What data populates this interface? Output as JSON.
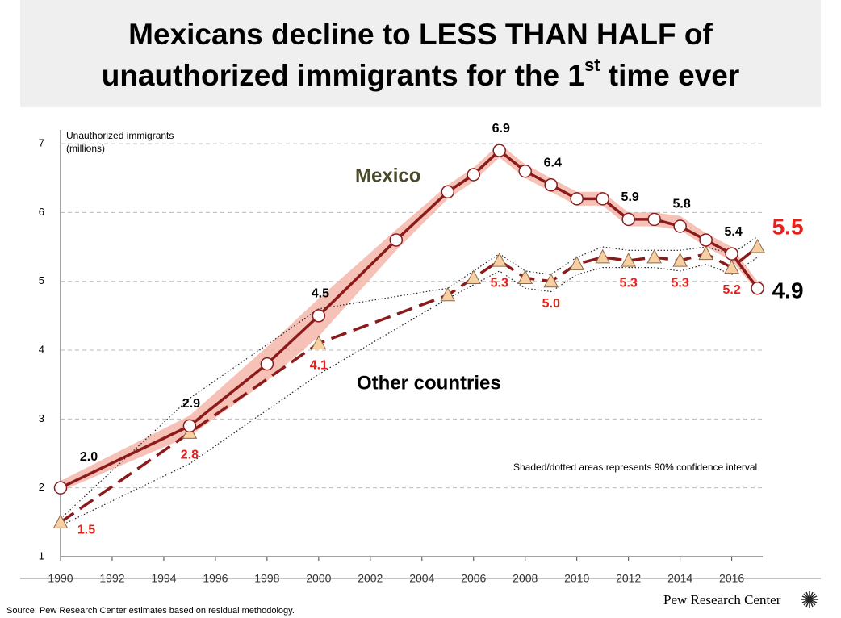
{
  "chart_data": {
    "type": "line",
    "title": {
      "line1": "Mexicans decline to LESS THAN HALF of",
      "line2": "unauthorized immigrants for the 1",
      "superscript": "st",
      "line2_end": " time ever"
    },
    "y_label": [
      "Unauthorized immigrants",
      "(millions)"
    ],
    "annotations": {
      "mexico": "Mexico",
      "other": "Other countries",
      "note": "Shaded/dotted areas represents 90% confidence interval"
    },
    "source": "Source: Pew Research Center estimates based on residual methodology.",
    "brand": "Pew Research Center",
    "xlim": [
      1990,
      2017.2
    ],
    "xticks": [
      1990,
      1992,
      1994,
      1996,
      1998,
      2000,
      2002,
      2004,
      2006,
      2008,
      2010,
      2012,
      2014,
      2016
    ],
    "ylim": [
      1,
      7.2
    ],
    "yticks": [
      1,
      2,
      3,
      4,
      5,
      6,
      7
    ],
    "grid": true,
    "series": [
      {
        "name": "Mexico",
        "color": "#8b1a1a",
        "band_color": "#f4b3a5",
        "x": [
          1990,
          1995,
          1998,
          2000,
          2003,
          2005,
          2006,
          2007,
          2008,
          2009,
          2010,
          2011,
          2012,
          2013,
          2014,
          2015,
          2016,
          2017
        ],
        "values": [
          2.0,
          2.9,
          3.8,
          4.5,
          5.6,
          6.3,
          6.55,
          6.9,
          6.6,
          6.4,
          6.2,
          6.2,
          5.9,
          5.9,
          5.8,
          5.6,
          5.4,
          4.9
        ],
        "value_labels": [
          "2.0",
          "2.9",
          null,
          "4.5",
          null,
          null,
          null,
          "6.9",
          null,
          "6.4",
          null,
          null,
          "5.9",
          null,
          "5.8",
          null,
          "5.4",
          "4.9"
        ],
        "lower": [
          1.95,
          2.75,
          3.55,
          4.2,
          5.45,
          6.2,
          6.45,
          6.8,
          6.5,
          6.3,
          6.1,
          6.1,
          5.8,
          5.8,
          5.75,
          5.5,
          5.3,
          4.85
        ],
        "upper": [
          2.1,
          3.05,
          4.05,
          4.75,
          5.75,
          6.4,
          6.65,
          7.0,
          6.7,
          6.5,
          6.3,
          6.3,
          6.0,
          6.0,
          5.95,
          5.7,
          5.5,
          5.0
        ]
      },
      {
        "name": "Other countries",
        "color": "#8b1a1a",
        "x": [
          1990,
          1995,
          2000,
          2005,
          2006,
          2007,
          2008,
          2009,
          2010,
          2011,
          2012,
          2013,
          2014,
          2015,
          2016,
          2017
        ],
        "values": [
          1.5,
          2.8,
          4.1,
          4.8,
          5.05,
          5.3,
          5.05,
          5.0,
          5.25,
          5.35,
          5.3,
          5.35,
          5.3,
          5.4,
          5.2,
          5.5
        ],
        "value_labels": [
          "1.5",
          "2.8",
          "4.1",
          null,
          null,
          "5.3",
          null,
          "5.0",
          null,
          null,
          "5.3",
          null,
          "5.3",
          null,
          "5.2",
          "5.5"
        ],
        "lower": [
          1.45,
          2.35,
          3.65,
          4.75,
          4.95,
          5.15,
          4.9,
          4.85,
          5.1,
          5.2,
          5.2,
          5.2,
          5.15,
          5.25,
          5.1,
          5.35
        ],
        "upper": [
          1.55,
          3.3,
          4.6,
          4.9,
          5.15,
          5.4,
          5.15,
          5.1,
          5.35,
          5.5,
          5.45,
          5.45,
          5.45,
          5.5,
          5.4,
          5.65
        ]
      }
    ]
  }
}
